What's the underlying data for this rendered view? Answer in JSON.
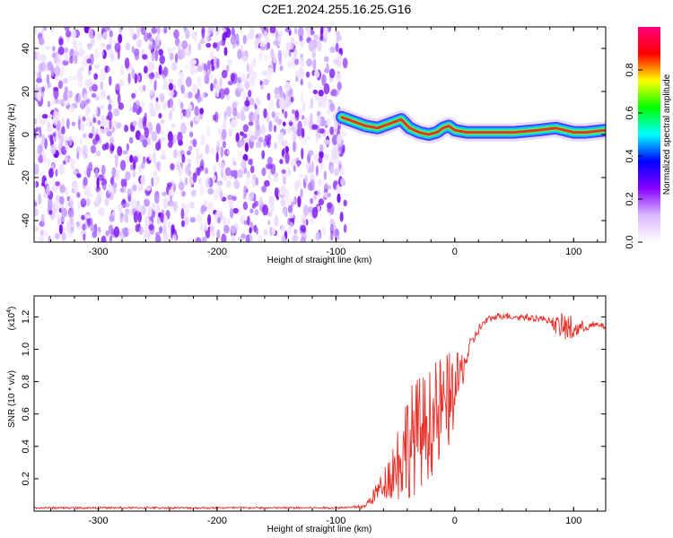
{
  "title": "C2E1.2024.255.16.25.G16",
  "chart_data": [
    {
      "type": "heatmap",
      "title": "C2E1.2024.255.16.25.G16",
      "xlabel": "Height of straight line (km)",
      "ylabel": "Frequency (Hz)",
      "xlim": [
        -354,
        127
      ],
      "ylim": [
        -50,
        50
      ],
      "x_ticks": [
        "-300",
        "-200",
        "-100",
        "0",
        "100"
      ],
      "y_ticks": [
        "-40",
        "-20",
        "0",
        "20",
        "40"
      ],
      "noise_region_x": [
        -354,
        -92
      ],
      "signal_trace": {
        "x": [
          -95,
          -85,
          -75,
          -65,
          -55,
          -45,
          -38,
          -30,
          -22,
          -15,
          -10,
          -5,
          0,
          10,
          30,
          50,
          70,
          85,
          100,
          110,
          127
        ],
        "frequency": [
          8,
          6,
          4,
          3,
          5,
          7,
          3,
          1,
          0,
          1,
          3,
          4,
          2,
          1,
          1,
          1,
          2,
          3,
          1,
          1,
          2
        ]
      },
      "colorbar": {
        "label": "Normalized spectral amplitude",
        "range": [
          0,
          1
        ],
        "ticks": [
          "0.0",
          "0.2",
          "0.4",
          "0.6",
          "0.8"
        ],
        "colors": [
          "#ffffff",
          "#d9b8ff",
          "#8800ff",
          "#0000ff",
          "#00ffff",
          "#00ff00",
          "#ffff00",
          "#ff0000",
          "#ff0080"
        ]
      }
    },
    {
      "type": "line",
      "xlabel": "Height of straight line (km)",
      "ylabel": "SNR (10 * v/v)",
      "scale_label": "(x10",
      "scale_exponent": "4",
      "xlim": [
        -354,
        127
      ],
      "ylim": [
        0,
        1.33
      ],
      "x_ticks": [
        "-300",
        "-200",
        "-100",
        "0",
        "100"
      ],
      "y_ticks": [
        "0.2",
        "0.4",
        "0.6",
        "0.8",
        "1.0",
        "1.2"
      ],
      "series": [
        {
          "color": "#e8312b",
          "x": [
            -354,
            -100,
            -75,
            -70,
            -62,
            -55,
            -50,
            -45,
            -40,
            -35,
            -30,
            -25,
            -20,
            -15,
            -10,
            -5,
            0,
            5,
            10,
            15,
            20,
            25,
            30,
            35,
            40,
            50,
            60,
            70,
            80,
            85,
            90,
            95,
            100,
            105,
            110,
            120,
            127
          ],
          "value": [
            0.02,
            0.02,
            0.03,
            0.08,
            0.15,
            0.22,
            0.28,
            0.35,
            0.42,
            0.45,
            0.48,
            0.52,
            0.55,
            0.58,
            0.62,
            0.68,
            0.75,
            0.85,
            0.95,
            1.05,
            1.12,
            1.17,
            1.19,
            1.2,
            1.21,
            1.2,
            1.2,
            1.19,
            1.18,
            1.15,
            1.14,
            1.13,
            1.12,
            1.13,
            1.14,
            1.15,
            1.14
          ],
          "spread": [
            0,
            0,
            0.01,
            0.04,
            0.08,
            0.14,
            0.22,
            0.3,
            0.34,
            0.36,
            0.36,
            0.34,
            0.34,
            0.36,
            0.36,
            0.3,
            0.22,
            0.14,
            0.08,
            0.04,
            0.03,
            0.02,
            0.02,
            0.02,
            0.02,
            0.02,
            0.02,
            0.02,
            0.02,
            0.05,
            0.08,
            0.1,
            0.08,
            0.04,
            0.03,
            0.02,
            0.02
          ]
        }
      ]
    }
  ]
}
